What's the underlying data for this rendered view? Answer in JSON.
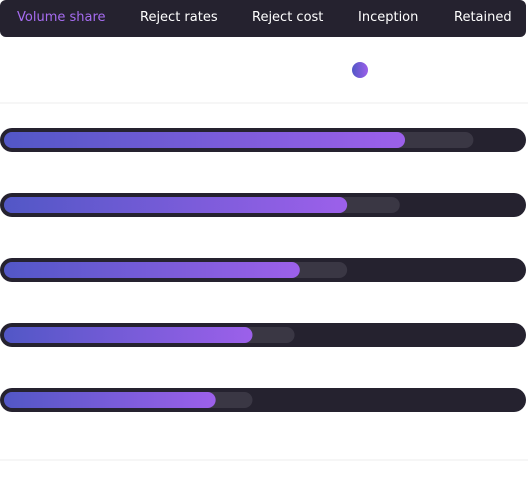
{
  "tabs": [
    "Volume share",
    "Reject rates",
    "Reject cost",
    "Inception",
    "Retained"
  ],
  "bars": [
    {
      "value": 77,
      "secondary": 90
    },
    {
      "value": 66,
      "secondary": 76
    },
    {
      "value": 57,
      "secondary": 66
    },
    {
      "value": 48,
      "secondary": 56
    },
    {
      "value": 41,
      "secondary": 48
    }
  ]
}
